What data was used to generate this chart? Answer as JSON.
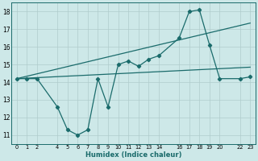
{
  "xlabel": "Humidex (Indice chaleur)",
  "background_color": "#cde8e8",
  "grid_color": "#b0cccc",
  "line_color": "#1a6b6b",
  "xlim": [
    -0.5,
    23.5
  ],
  "ylim": [
    10.5,
    18.5
  ],
  "xtick_labels": [
    "0",
    "1",
    "2",
    "4",
    "5",
    "6",
    "7",
    "8",
    "9",
    "10",
    "11",
    "12",
    "13",
    "14",
    "16",
    "17",
    "18",
    "19",
    "20",
    "22",
    "23"
  ],
  "xtick_pos": [
    0,
    1,
    2,
    4,
    5,
    6,
    7,
    8,
    9,
    10,
    11,
    12,
    13,
    14,
    16,
    17,
    18,
    19,
    20,
    22,
    23
  ],
  "yticks": [
    11,
    12,
    13,
    14,
    15,
    16,
    17,
    18
  ],
  "line1_x": [
    0,
    1,
    2,
    4,
    5,
    6,
    7,
    8,
    9,
    10,
    11,
    12,
    13,
    14,
    16,
    17,
    18,
    19,
    20,
    22,
    23
  ],
  "line1_y": [
    14.2,
    14.2,
    14.2,
    12.6,
    11.3,
    11.0,
    11.3,
    14.2,
    12.6,
    15.0,
    15.2,
    14.9,
    15.3,
    15.5,
    16.5,
    18.0,
    18.1,
    16.1,
    14.2,
    14.2,
    14.3
  ],
  "line2_x": [
    0,
    23
  ],
  "line2_y": [
    14.2,
    17.35
  ],
  "line3_x": [
    0,
    23
  ],
  "line3_y": [
    14.2,
    14.85
  ]
}
